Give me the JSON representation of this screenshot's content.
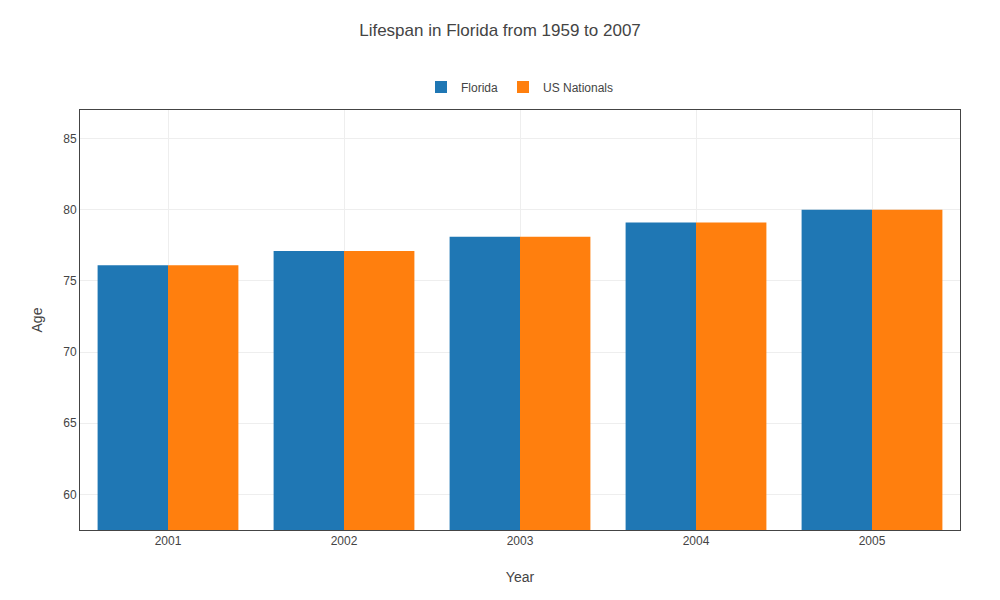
{
  "chart_data": {
    "type": "bar",
    "title": "Lifespan in Florida from 1959 to 2007",
    "x_label": "Year",
    "y_label": "Age",
    "categories": [
      "2001",
      "2002",
      "2003",
      "2004",
      "2005"
    ],
    "series": [
      {
        "name": "Florida",
        "values": [
          76.1,
          77.1,
          78.1,
          79.1,
          80.0
        ]
      },
      {
        "name": "US Nationals",
        "values": [
          76.1,
          77.1,
          78.1,
          79.1,
          80.0
        ]
      }
    ],
    "ylim": [
      57.5,
      87
    ],
    "yticks": [
      60,
      65,
      70,
      75,
      80,
      85
    ],
    "grid": true,
    "legend": "top"
  }
}
